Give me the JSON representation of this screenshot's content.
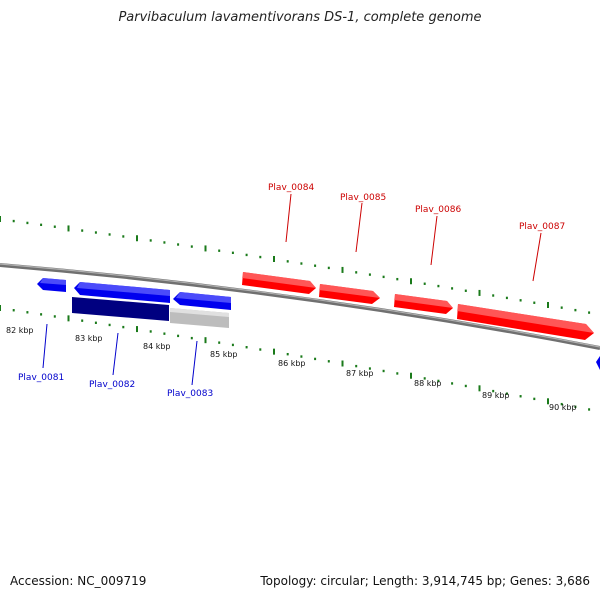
{
  "title": "Parvibaculum lavamentivorans DS-1, complete genome",
  "footer": {
    "accession": "Accession: NC_009719",
    "stats": "Topology: circular; Length: 3,914,745 bp; Genes: 3,686"
  },
  "colors": {
    "forward": "#ff0000",
    "reverse": "#0000ee",
    "selected": "#000080",
    "grey": "#bdbdbd",
    "backbone": "#808080",
    "ticks": "#1a7a1a"
  },
  "ruler": [
    "82 kbp",
    "83 kbp",
    "84 kbp",
    "85 kbp",
    "86 kbp",
    "87 kbp",
    "88 kbp",
    "89 kbp",
    "90 kbp"
  ],
  "genes": {
    "forward": [
      "Plav_0084",
      "Plav_0085",
      "Plav_0086",
      "Plav_0087"
    ],
    "reverse": [
      "Plav_0081",
      "Plav_0082",
      "Plav_0083"
    ]
  }
}
